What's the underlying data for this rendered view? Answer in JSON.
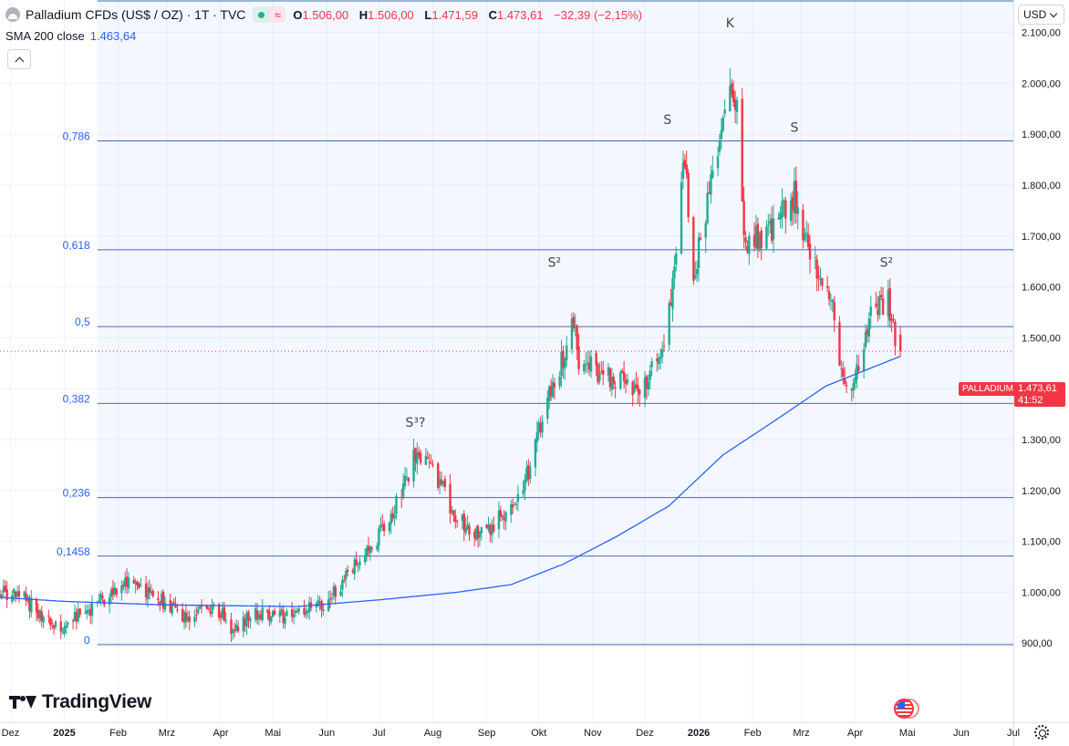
{
  "header": {
    "title": "Palladium CFDs (US$ / OZ) · 1T · TVC",
    "ohlc": [
      {
        "k": "O",
        "v": "1.506,00"
      },
      {
        "k": "H",
        "v": "1.506,00"
      },
      {
        "k": "L",
        "v": "1.471,59"
      },
      {
        "k": "C",
        "v": "1.473,61"
      }
    ],
    "change": "−32,39 (−2,15%)"
  },
  "indicator": {
    "label": "SMA 200 close",
    "value": "1.463,64"
  },
  "currency": "USD",
  "price_tag": {
    "symbol": "PALLADIUM",
    "price": "1.473,61",
    "countdown": "41:52"
  },
  "logo_text": "TradingView",
  "colors": {
    "up": "#22ab94",
    "down": "#f23645",
    "sma": "#2962ff",
    "fib_line": "#3d6fb6",
    "fib_label": "#2962ff",
    "grid": "#f0f3fa",
    "annotation": "#434651"
  },
  "icons": [
    "symbol-icon",
    "live-status-icon",
    "delayed-status-icon",
    "collapse-chevron-icon",
    "currency-chevron-icon",
    "us-flag-icon",
    "settings-icon",
    "tradingview-logo-icon"
  ],
  "chart_data": {
    "type": "candlestick",
    "yaxis": {
      "side": "right",
      "range": [
        880,
        2160
      ],
      "ticks": [
        {
          "v": 900,
          "label": "900,00"
        },
        {
          "v": 1000,
          "label": "1.000,00"
        },
        {
          "v": 1100,
          "label": "1.100,00"
        },
        {
          "v": 1200,
          "label": "1.200,00"
        },
        {
          "v": 1300,
          "label": "1.300,00"
        },
        {
          "v": 1400,
          "label": "1.400,00"
        },
        {
          "v": 1500,
          "label": "1.500,00"
        },
        {
          "v": 1600,
          "label": "1.600,00"
        },
        {
          "v": 1700,
          "label": "1.700,00"
        },
        {
          "v": 1800,
          "label": "1.800,00"
        },
        {
          "v": 1900,
          "label": "1.900,00"
        },
        {
          "v": 2000,
          "label": "2.000,00"
        },
        {
          "v": 2100,
          "label": "2.100,00"
        }
      ]
    },
    "xaxis": {
      "range": [
        "2024-11-25",
        "2026-07-01"
      ],
      "ticks": [
        {
          "date": "2024-12-01",
          "label": "Dez",
          "bold": false
        },
        {
          "date": "2025-01-01",
          "label": "2025",
          "bold": true
        },
        {
          "date": "2025-02-01",
          "label": "Feb",
          "bold": false
        },
        {
          "date": "2025-03-01",
          "label": "Mrz",
          "bold": false
        },
        {
          "date": "2025-04-01",
          "label": "Apr",
          "bold": false
        },
        {
          "date": "2025-05-01",
          "label": "Mai",
          "bold": false
        },
        {
          "date": "2025-06-01",
          "label": "Jun",
          "bold": false
        },
        {
          "date": "2025-07-01",
          "label": "Jul",
          "bold": false
        },
        {
          "date": "2025-08-01",
          "label": "Aug",
          "bold": false
        },
        {
          "date": "2025-09-01",
          "label": "Sep",
          "bold": false
        },
        {
          "date": "2025-10-01",
          "label": "Okt",
          "bold": false
        },
        {
          "date": "2025-11-01",
          "label": "Nov",
          "bold": false
        },
        {
          "date": "2025-12-01",
          "label": "Dez",
          "bold": false
        },
        {
          "date": "2026-01-01",
          "label": "2026",
          "bold": true
        },
        {
          "date": "2026-02-01",
          "label": "Feb",
          "bold": false
        },
        {
          "date": "2026-03-01",
          "label": "Mrz",
          "bold": false
        },
        {
          "date": "2026-04-01",
          "label": "Apr",
          "bold": false
        },
        {
          "date": "2026-05-01",
          "label": "Mai",
          "bold": false
        },
        {
          "date": "2026-06-01",
          "label": "Jun",
          "bold": false
        },
        {
          "date": "2026-07-01",
          "label": "Jul",
          "bold": false
        }
      ]
    },
    "fib_levels": [
      {
        "label": "0",
        "value": 897
      },
      {
        "label": "0,1458",
        "value": 1071
      },
      {
        "label": "0,236",
        "value": 1186
      },
      {
        "label": "0,382",
        "value": 1371
      },
      {
        "label": "0,5",
        "value": 1522
      },
      {
        "label": "0,618",
        "value": 1673
      },
      {
        "label": "0,786",
        "value": 1887
      },
      {
        "label": "",
        "value": 2162
      }
    ],
    "fib_zone_start": "2025-01-20",
    "last_price": 1473.61,
    "annotations": [
      {
        "text": "S³?",
        "date": "2025-07-22",
        "value": 1325
      },
      {
        "text": "S²",
        "date": "2025-10-10",
        "value": 1640
      },
      {
        "text": "S",
        "date": "2025-12-14",
        "value": 1920
      },
      {
        "text": "K",
        "date": "2026-01-19",
        "value": 2110
      },
      {
        "text": "S",
        "date": "2026-02-25",
        "value": 1905
      },
      {
        "text": "S²",
        "date": "2026-04-19",
        "value": 1640
      }
    ],
    "price_anchors": [
      [
        "2024-11-25",
        1000
      ],
      [
        "2024-12-10",
        985
      ],
      [
        "2024-12-28",
        925
      ],
      [
        "2025-01-15",
        965
      ],
      [
        "2025-02-05",
        1020
      ],
      [
        "2025-02-25",
        985
      ],
      [
        "2025-03-10",
        950
      ],
      [
        "2025-03-28",
        975
      ],
      [
        "2025-04-08",
        925
      ],
      [
        "2025-04-20",
        960
      ],
      [
        "2025-05-10",
        950
      ],
      [
        "2025-05-30",
        975
      ],
      [
        "2025-06-20",
        1060
      ],
      [
        "2025-07-08",
        1145
      ],
      [
        "2025-07-22",
        1270
      ],
      [
        "2025-08-01",
        1240
      ],
      [
        "2025-08-15",
        1145
      ],
      [
        "2025-08-30",
        1115
      ],
      [
        "2025-09-15",
        1165
      ],
      [
        "2025-09-25",
        1240
      ],
      [
        "2025-10-05",
        1370
      ],
      [
        "2025-10-15",
        1465
      ],
      [
        "2025-10-20",
        1550
      ],
      [
        "2025-10-24",
        1455
      ],
      [
        "2025-11-10",
        1420
      ],
      [
        "2025-11-28",
        1395
      ],
      [
        "2025-12-12",
        1490
      ],
      [
        "2025-12-18",
        1620
      ],
      [
        "2025-12-24",
        1860
      ],
      [
        "2025-12-29",
        1620
      ],
      [
        "2026-01-08",
        1810
      ],
      [
        "2026-01-18",
        2000
      ],
      [
        "2026-01-23",
        1940
      ],
      [
        "2026-01-27",
        1690
      ],
      [
        "2026-02-10",
        1700
      ],
      [
        "2026-02-25",
        1780
      ],
      [
        "2026-03-08",
        1640
      ],
      [
        "2026-03-18",
        1580
      ],
      [
        "2026-03-24",
        1420
      ],
      [
        "2026-03-31",
        1400
      ],
      [
        "2026-04-10",
        1545
      ],
      [
        "2026-04-20",
        1575
      ],
      [
        "2026-04-24",
        1506
      ],
      [
        "2026-04-27",
        1473.61
      ]
    ],
    "sma_anchors": [
      [
        "2024-11-25",
        990
      ],
      [
        "2025-01-01",
        982
      ],
      [
        "2025-03-01",
        975
      ],
      [
        "2025-05-15",
        972
      ],
      [
        "2025-07-01",
        985
      ],
      [
        "2025-08-15",
        1000
      ],
      [
        "2025-09-15",
        1015
      ],
      [
        "2025-10-15",
        1055
      ],
      [
        "2025-11-15",
        1110
      ],
      [
        "2025-12-15",
        1170
      ],
      [
        "2026-01-15",
        1270
      ],
      [
        "2026-02-15",
        1340
      ],
      [
        "2026-03-15",
        1405
      ],
      [
        "2026-04-27",
        1463.64
      ]
    ]
  }
}
